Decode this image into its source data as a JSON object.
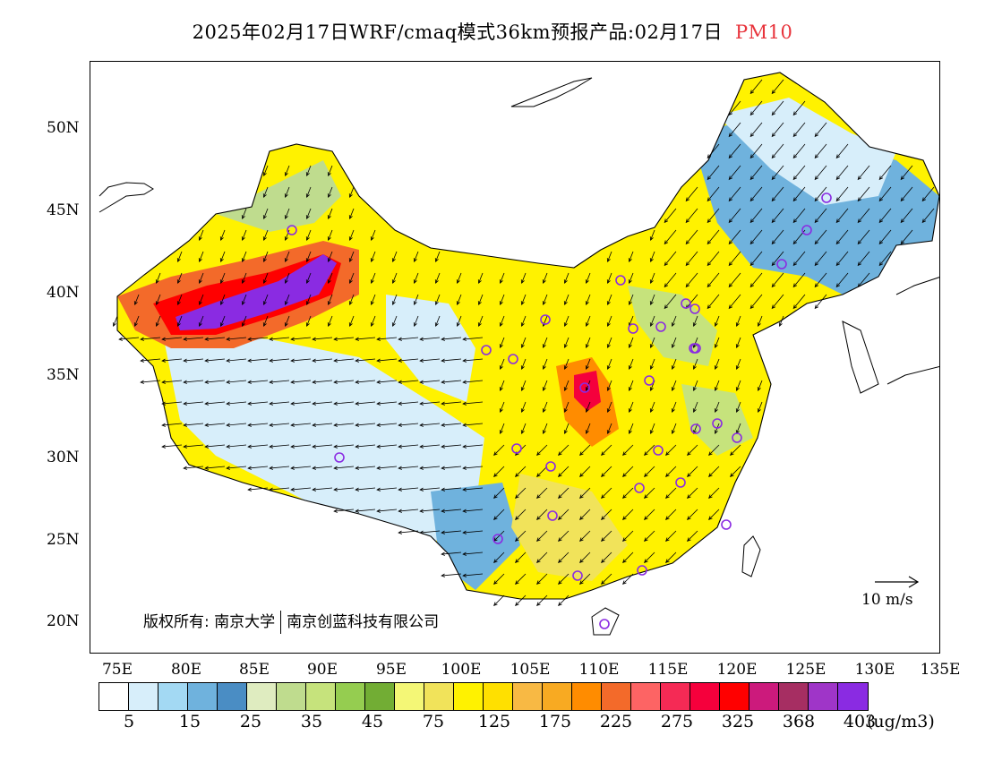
{
  "title": {
    "text": "2025年02月17日WRF/cmaq模式36km预报产品:02月17日",
    "pollutant": "PM10",
    "pollutant_color": "#e8343c"
  },
  "axes": {
    "lat_labels": [
      "50N",
      "45N",
      "40N",
      "35N",
      "30N",
      "25N",
      "20N"
    ],
    "lon_labels": [
      "75E",
      "80E",
      "85E",
      "90E",
      "95E",
      "100E",
      "105E",
      "110E",
      "115E",
      "120E",
      "125E",
      "130E",
      "135E"
    ]
  },
  "copyright": {
    "prefix": "版权所有:",
    "org1": "南京大学",
    "org2": "南京创蓝科技有限公司"
  },
  "reference_vector": {
    "label": "10 m/s"
  },
  "legend": {
    "colors": [
      "#ffffff",
      "#d7eefa",
      "#a3d9f3",
      "#6fb2dd",
      "#4a8dc4",
      "#dfecc0",
      "#bfdc8e",
      "#c6e37c",
      "#95cd50",
      "#72ad34",
      "#f4f776",
      "#f1e35a",
      "#fff200",
      "#ffe000",
      "#f8b944",
      "#f8aa22",
      "#ff8c00",
      "#f36a2a",
      "#fd6464",
      "#f52a55",
      "#f5003c",
      "#ff0000",
      "#cc1a7c",
      "#a62e62",
      "#9f35c8",
      "#8a2be2"
    ],
    "labels": [
      "5",
      "15",
      "25",
      "35",
      "45",
      "75",
      "125",
      "175",
      "225",
      "275",
      "325",
      "368",
      "403"
    ],
    "units": "(ug/m3)"
  }
}
